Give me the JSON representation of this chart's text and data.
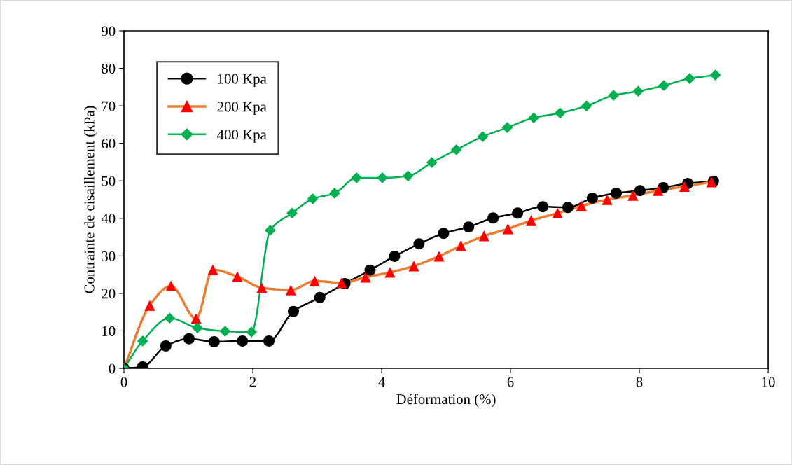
{
  "chart_data": {
    "type": "line",
    "xlabel": "Déformation (%)",
    "ylabel": "Contrainte de cisaillement (kPa)",
    "xlim": [
      0,
      10
    ],
    "xticks": [
      0,
      2,
      4,
      6,
      8,
      10
    ],
    "ylim": [
      0,
      90
    ],
    "yticks": [
      0,
      10,
      20,
      30,
      40,
      50,
      60,
      70,
      80,
      90
    ],
    "grid": false,
    "legend": "top left",
    "line_style": "solid",
    "series": [
      {
        "name": "100 Kpa",
        "color": "#000000",
        "marker": "circle",
        "x": [
          0,
          0.29,
          0.65,
          1.01,
          1.4,
          1.84,
          2.25,
          2.63,
          3.04,
          3.43,
          3.82,
          4.2,
          4.58,
          4.96,
          5.35,
          5.73,
          6.11,
          6.5,
          6.89,
          7.27,
          7.64,
          8.01,
          8.37,
          8.75,
          9.15
        ],
        "values": [
          0,
          0.4,
          6,
          7.9,
          7.1,
          7.3,
          7.3,
          15.2,
          18.9,
          22.6,
          26.2,
          29.9,
          33.2,
          36,
          37.7,
          40.1,
          41.4,
          43.1,
          42.9,
          45.4,
          46.7,
          47.4,
          48.2,
          49.3,
          49.9
        ]
      },
      {
        "name": "200 Kpa",
        "color": "#ed7d31",
        "marker": "triangle",
        "colors": [
          "#ff0000",
          "#ff0000",
          "#ff0000",
          "#ff0000",
          "#ff0000",
          "#ff0000",
          "#ff0000",
          "#ff0000",
          "#ff0000",
          "#ff0000",
          "#ff0000",
          "#ff0000",
          "#ff0000",
          "#ff0000",
          "#ff0000",
          "#ff0000",
          "#ff0000",
          "#ff0000",
          "#ff0000",
          "#ff0000",
          "#ff0000",
          "#ff0000",
          "#ff0000",
          "#ff0000",
          "#ff0000"
        ],
        "x": [
          0,
          0.4,
          0.73,
          1.12,
          1.38,
          1.76,
          2.14,
          2.59,
          2.96,
          3.38,
          3.75,
          4.13,
          4.5,
          4.89,
          5.23,
          5.59,
          5.96,
          6.32,
          6.73,
          7.1,
          7.5,
          7.9,
          8.29,
          8.7,
          9.12
        ],
        "values": [
          0,
          16.8,
          22.0,
          13.3,
          26.3,
          24.5,
          21.5,
          20.9,
          23.3,
          22.8,
          24.3,
          25.6,
          27.3,
          29.9,
          32.7,
          35.3,
          37.2,
          39.4,
          41.4,
          43.3,
          45.0,
          46.1,
          47.4,
          48.5,
          49.7
        ]
      },
      {
        "name": "400 Kpa",
        "color": "#00b050",
        "marker": "diamond",
        "x": [
          0,
          0.29,
          0.71,
          1.14,
          1.57,
          1.98,
          2.27,
          2.61,
          2.93,
          3.27,
          3.61,
          4.01,
          4.41,
          4.78,
          5.16,
          5.57,
          5.95,
          6.36,
          6.77,
          7.18,
          7.6,
          7.98,
          8.38,
          8.78,
          9.18
        ],
        "values": [
          0,
          7.3,
          13.4,
          10.8,
          9.9,
          9.7,
          36.8,
          41.4,
          45.2,
          46.7,
          50.8,
          50.8,
          51.3,
          54.9,
          58.3,
          61.8,
          64.2,
          66.8,
          68.1,
          70.0,
          72.8,
          73.9,
          75.4,
          77.3,
          78.2
        ]
      }
    ]
  }
}
